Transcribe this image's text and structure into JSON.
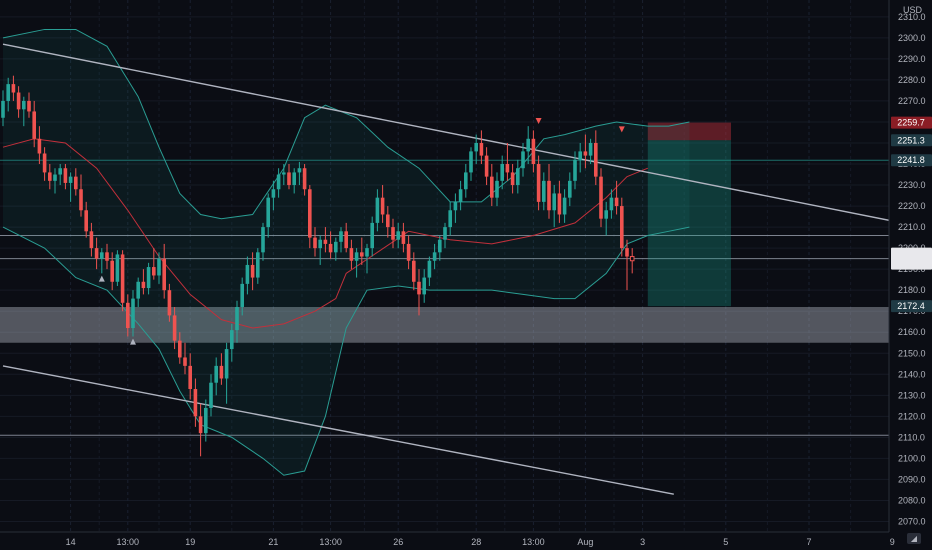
{
  "chart_data": {
    "type": "candlestick",
    "currency": "USD",
    "y_axis": {
      "min": 2065,
      "max": 2318,
      "ticks": [
        2070,
        2080,
        2090,
        2100,
        2110,
        2120,
        2130,
        2140,
        2150,
        2160,
        2170,
        2180,
        2190,
        2200,
        2210,
        2220,
        2230,
        2240,
        2250,
        2260,
        2270,
        2280,
        2290,
        2300,
        2310
      ]
    },
    "x_axis": {
      "ticks": [
        {
          "label": "14",
          "bar": 13
        },
        {
          "label": "13:00",
          "bar": 24
        },
        {
          "label": "19",
          "bar": 36
        },
        {
          "label": "21",
          "bar": 52
        },
        {
          "label": "13:00",
          "bar": 63
        },
        {
          "label": "26",
          "bar": 76
        },
        {
          "label": "28",
          "bar": 91
        },
        {
          "label": "13:00",
          "bar": 102
        },
        {
          "label": "Aug",
          "bar": 112
        },
        {
          "label": "3",
          "bar": 123
        },
        {
          "label": "5",
          "bar": 139
        },
        {
          "label": "7",
          "bar": 155
        },
        {
          "label": "9",
          "bar": 171
        }
      ]
    },
    "bar_count_visible": 180,
    "candles": [
      [
        2262,
        2275,
        2258,
        2270
      ],
      [
        2270,
        2281,
        2265,
        2278
      ],
      [
        2278,
        2282,
        2270,
        2274
      ],
      [
        2274,
        2277,
        2262,
        2266
      ],
      [
        2266,
        2272,
        2258,
        2270
      ],
      [
        2270,
        2274,
        2262,
        2265
      ],
      [
        2265,
        2270,
        2248,
        2252
      ],
      [
        2252,
        2258,
        2240,
        2245
      ],
      [
        2245,
        2248,
        2232,
        2236
      ],
      [
        2236,
        2240,
        2228,
        2232
      ],
      [
        2232,
        2238,
        2226,
        2235
      ],
      [
        2235,
        2240,
        2230,
        2238
      ],
      [
        2238,
        2240,
        2228,
        2231
      ],
      [
        2231,
        2236,
        2222,
        2234
      ],
      [
        2234,
        2238,
        2225,
        2228
      ],
      [
        2228,
        2235,
        2215,
        2218
      ],
      [
        2218,
        2222,
        2205,
        2208
      ],
      [
        2208,
        2212,
        2196,
        2200
      ],
      [
        2200,
        2205,
        2190,
        2195
      ],
      [
        2195,
        2200,
        2188,
        2198
      ],
      [
        2198,
        2202,
        2190,
        2194
      ],
      [
        2194,
        2198,
        2180,
        2184
      ],
      [
        2184,
        2199,
        2182,
        2197
      ],
      [
        2197,
        2199,
        2170,
        2174
      ],
      [
        2174,
        2178,
        2158,
        2162
      ],
      [
        2162,
        2180,
        2158,
        2176
      ],
      [
        2176,
        2186,
        2172,
        2184
      ],
      [
        2184,
        2190,
        2178,
        2181
      ],
      [
        2181,
        2193,
        2178,
        2191
      ],
      [
        2191,
        2200,
        2185,
        2187
      ],
      [
        2187,
        2198,
        2183,
        2195
      ],
      [
        2195,
        2202,
        2176,
        2180
      ],
      [
        2180,
        2183,
        2165,
        2168
      ],
      [
        2168,
        2172,
        2152,
        2156
      ],
      [
        2156,
        2160,
        2145,
        2148
      ],
      [
        2148,
        2155,
        2140,
        2144
      ],
      [
        2144,
        2150,
        2128,
        2133
      ],
      [
        2133,
        2138,
        2115,
        2120
      ],
      [
        2120,
        2126,
        2101,
        2112
      ],
      [
        2112,
        2128,
        2108,
        2124
      ],
      [
        2124,
        2140,
        2120,
        2136
      ],
      [
        2136,
        2148,
        2130,
        2144
      ],
      [
        2144,
        2150,
        2135,
        2138
      ],
      [
        2138,
        2155,
        2126,
        2152
      ],
      [
        2152,
        2164,
        2146,
        2161
      ],
      [
        2161,
        2175,
        2155,
        2172
      ],
      [
        2172,
        2186,
        2168,
        2183
      ],
      [
        2183,
        2196,
        2178,
        2192
      ],
      [
        2192,
        2198,
        2180,
        2186
      ],
      [
        2186,
        2200,
        2183,
        2198
      ],
      [
        2198,
        2212,
        2194,
        2210
      ],
      [
        2210,
        2226,
        2205,
        2224
      ],
      [
        2224,
        2232,
        2218,
        2228
      ],
      [
        2228,
        2238,
        2224,
        2235
      ],
      [
        2235,
        2240,
        2230,
        2236
      ],
      [
        2236,
        2240,
        2228,
        2230
      ],
      [
        2230,
        2238,
        2226,
        2236
      ],
      [
        2236,
        2241,
        2230,
        2238
      ],
      [
        2238,
        2240,
        2225,
        2228
      ],
      [
        2228,
        2230,
        2200,
        2205
      ],
      [
        2205,
        2210,
        2196,
        2200
      ],
      [
        2200,
        2206,
        2192,
        2204
      ],
      [
        2204,
        2210,
        2198,
        2202
      ],
      [
        2202,
        2208,
        2195,
        2198
      ],
      [
        2198,
        2205,
        2194,
        2203
      ],
      [
        2203,
        2210,
        2198,
        2208
      ],
      [
        2208,
        2212,
        2198,
        2200
      ],
      [
        2200,
        2204,
        2190,
        2194
      ],
      [
        2194,
        2200,
        2186,
        2198
      ],
      [
        2198,
        2205,
        2192,
        2196
      ],
      [
        2196,
        2202,
        2188,
        2200
      ],
      [
        2200,
        2215,
        2196,
        2212
      ],
      [
        2212,
        2228,
        2208,
        2224
      ],
      [
        2224,
        2230,
        2212,
        2216
      ],
      [
        2216,
        2220,
        2205,
        2210
      ],
      [
        2210,
        2214,
        2200,
        2204
      ],
      [
        2204,
        2212,
        2200,
        2208
      ],
      [
        2208,
        2212,
        2198,
        2202
      ],
      [
        2202,
        2206,
        2190,
        2194
      ],
      [
        2194,
        2198,
        2180,
        2184
      ],
      [
        2184,
        2190,
        2168,
        2178
      ],
      [
        2178,
        2190,
        2174,
        2186
      ],
      [
        2186,
        2196,
        2182,
        2194
      ],
      [
        2194,
        2202,
        2190,
        2198
      ],
      [
        2198,
        2206,
        2194,
        2204
      ],
      [
        2204,
        2212,
        2200,
        2210
      ],
      [
        2210,
        2222,
        2206,
        2218
      ],
      [
        2218,
        2226,
        2212,
        2222
      ],
      [
        2222,
        2232,
        2218,
        2228
      ],
      [
        2228,
        2240,
        2224,
        2236
      ],
      [
        2236,
        2248,
        2232,
        2246
      ],
      [
        2246,
        2254,
        2240,
        2250
      ],
      [
        2250,
        2256,
        2240,
        2244
      ],
      [
        2244,
        2248,
        2230,
        2234
      ],
      [
        2234,
        2240,
        2220,
        2224
      ],
      [
        2224,
        2236,
        2220,
        2232
      ],
      [
        2232,
        2244,
        2228,
        2240
      ],
      [
        2240,
        2250,
        2232,
        2236
      ],
      [
        2236,
        2240,
        2226,
        2230
      ],
      [
        2230,
        2242,
        2226,
        2238
      ],
      [
        2238,
        2250,
        2234,
        2246
      ],
      [
        2246,
        2258,
        2240,
        2252
      ],
      [
        2252,
        2256,
        2236,
        2240
      ],
      [
        2240,
        2244,
        2218,
        2222
      ],
      [
        2222,
        2236,
        2218,
        2232
      ],
      [
        2232,
        2240,
        2214,
        2218
      ],
      [
        2218,
        2230,
        2210,
        2226
      ],
      [
        2226,
        2232,
        2212,
        2216
      ],
      [
        2216,
        2228,
        2212,
        2224
      ],
      [
        2224,
        2236,
        2220,
        2232
      ],
      [
        2232,
        2246,
        2228,
        2242
      ],
      [
        2242,
        2250,
        2236,
        2246
      ],
      [
        2246,
        2254,
        2238,
        2244
      ],
      [
        2244,
        2252,
        2240,
        2250
      ],
      [
        2250,
        2256,
        2230,
        2234
      ],
      [
        2234,
        2238,
        2210,
        2214
      ],
      [
        2214,
        2222,
        2206,
        2218
      ],
      [
        2218,
        2228,
        2214,
        2224
      ],
      [
        2224,
        2232,
        2216,
        2220
      ],
      [
        2220,
        2224,
        2196,
        2200
      ],
      [
        2200,
        2204,
        2180,
        2196
      ],
      [
        2196,
        2200,
        2188,
        2194
      ]
    ],
    "bollinger": {
      "mid_points": [
        [
          0,
          2212
        ],
        [
          8,
          2218
        ],
        [
          14,
          2226
        ],
        [
          20,
          2228
        ],
        [
          26,
          2214
        ],
        [
          32,
          2196
        ],
        [
          38,
          2176
        ],
        [
          44,
          2164
        ],
        [
          50,
          2164
        ],
        [
          56,
          2170
        ],
        [
          62,
          2178
        ],
        [
          68,
          2200
        ],
        [
          74,
          2208
        ],
        [
          80,
          2208
        ],
        [
          86,
          2204
        ],
        [
          92,
          2206
        ],
        [
          98,
          2214
        ],
        [
          104,
          2222
        ],
        [
          110,
          2226
        ],
        [
          114,
          2232
        ],
        [
          118,
          2228
        ],
        [
          124,
          2222
        ],
        [
          128,
          2216
        ],
        [
          132,
          2210
        ]
      ],
      "upper_points": [
        [
          0,
          2300
        ],
        [
          8,
          2304
        ],
        [
          14,
          2304
        ],
        [
          20,
          2296
        ],
        [
          26,
          2272
        ],
        [
          30,
          2248
        ],
        [
          34,
          2226
        ],
        [
          38,
          2216
        ],
        [
          42,
          2214
        ],
        [
          48,
          2216
        ],
        [
          54,
          2238
        ],
        [
          58,
          2262
        ],
        [
          62,
          2268
        ],
        [
          68,
          2262
        ],
        [
          74,
          2248
        ],
        [
          80,
          2238
        ],
        [
          86,
          2222
        ],
        [
          92,
          2222
        ],
        [
          98,
          2234
        ],
        [
          104,
          2252
        ],
        [
          108,
          2254
        ],
        [
          114,
          2258
        ],
        [
          118,
          2260
        ],
        [
          124,
          2258
        ],
        [
          128,
          2258
        ],
        [
          132,
          2260
        ]
      ],
      "lower_points": [
        [
          0,
          2210
        ],
        [
          8,
          2200
        ],
        [
          14,
          2186
        ],
        [
          20,
          2180
        ],
        [
          26,
          2164
        ],
        [
          30,
          2152
        ],
        [
          34,
          2132
        ],
        [
          38,
          2116
        ],
        [
          44,
          2110
        ],
        [
          50,
          2100
        ],
        [
          54,
          2092
        ],
        [
          58,
          2094
        ],
        [
          62,
          2120
        ],
        [
          66,
          2162
        ],
        [
          70,
          2180
        ],
        [
          76,
          2182
        ],
        [
          82,
          2180
        ],
        [
          88,
          2180
        ],
        [
          94,
          2180
        ],
        [
          100,
          2178
        ],
        [
          106,
          2176
        ],
        [
          110,
          2176
        ],
        [
          116,
          2188
        ],
        [
          120,
          2202
        ],
        [
          124,
          2206
        ],
        [
          128,
          2208
        ],
        [
          132,
          2210
        ]
      ],
      "ma_points": [
        [
          0,
          2248
        ],
        [
          6,
          2252
        ],
        [
          12,
          2250
        ],
        [
          18,
          2238
        ],
        [
          24,
          2218
        ],
        [
          30,
          2196
        ],
        [
          36,
          2178
        ],
        [
          42,
          2166
        ],
        [
          48,
          2162
        ],
        [
          54,
          2164
        ],
        [
          60,
          2170
        ],
        [
          64,
          2176
        ],
        [
          66,
          2188
        ],
        [
          72,
          2198
        ],
        [
          78,
          2208
        ],
        [
          86,
          2204
        ],
        [
          94,
          2202
        ],
        [
          102,
          2206
        ],
        [
          110,
          2212
        ],
        [
          116,
          2224
        ],
        [
          120,
          2234
        ],
        [
          124,
          2238
        ]
      ]
    },
    "trend_lines": [
      {
        "name": "upper-channel",
        "from": [
          0,
          2297
        ],
        "to": [
          179,
          2209
        ]
      },
      {
        "name": "lower-channel",
        "from": [
          0,
          2144
        ],
        "to": [
          129,
          2083
        ]
      }
    ],
    "horizontal_levels": [
      2241.8,
      2206,
      2195,
      2111
    ],
    "support_zone": [
      2155,
      2172
    ],
    "position": {
      "entry": 2251.3,
      "stop": 2259.7,
      "target": 2172.4,
      "start_bar": 124,
      "end_bar": 140
    },
    "price_labels": [
      {
        "value": 2259.7,
        "text": "2259.7",
        "color": "#8b1d25"
      },
      {
        "value": 2251.3,
        "text": "2251.3",
        "color": "#1f3a44"
      },
      {
        "value": 2241.8,
        "text": "2241.8",
        "color": "#1f3a44"
      },
      {
        "value": 2195,
        "text": "",
        "color": "#e8e8ec"
      },
      {
        "value": 2172.4,
        "text": "2172.4",
        "color": "#1f3a44"
      }
    ],
    "markers": [
      {
        "bar": 19,
        "price": 2186,
        "dir": "up"
      },
      {
        "bar": 25,
        "price": 2156,
        "dir": "up"
      },
      {
        "bar": 103,
        "price": 2260,
        "dir": "down"
      },
      {
        "bar": 119,
        "price": 2256,
        "dir": "down"
      }
    ]
  }
}
